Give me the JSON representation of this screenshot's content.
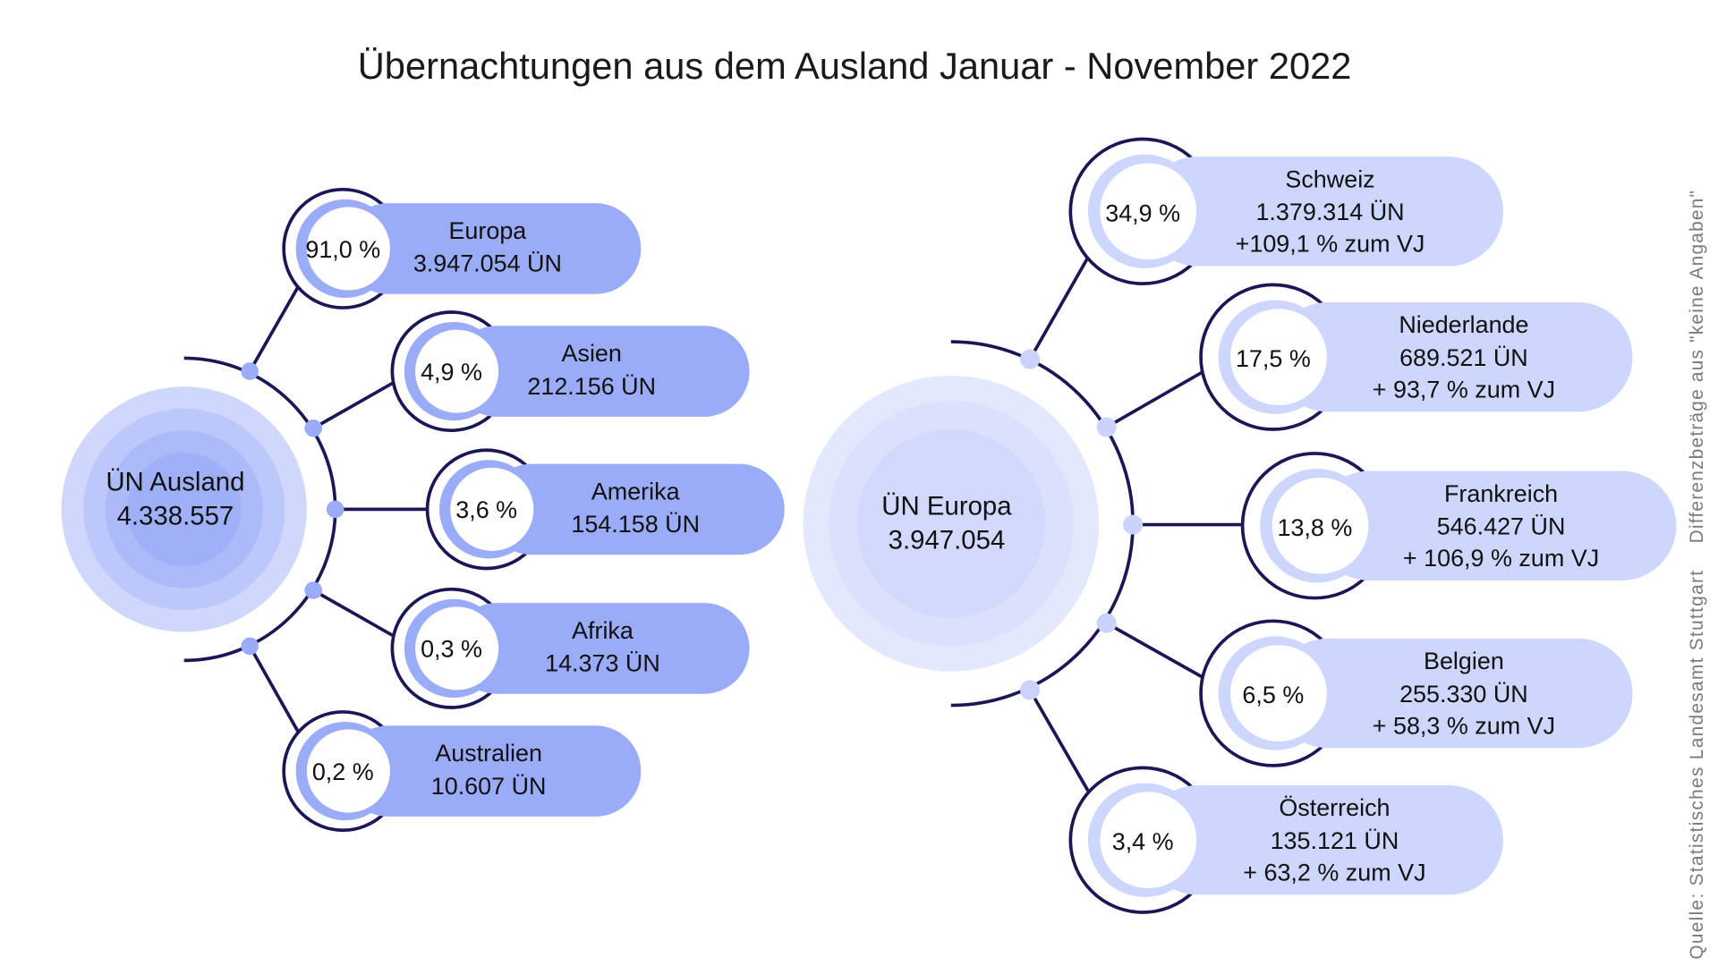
{
  "title": "Übernachtungen aus dem Ausland Januar - November 2022",
  "colors": {
    "dark": "#1b1656",
    "left_pill": "#9aabf8",
    "right_pill": "#cdd6fc",
    "left_dot": "#9aabf8",
    "right_dot": "#c9d3fb"
  },
  "left": {
    "center_label": "ÜN Ausland",
    "center_value": "4.338.557",
    "items": [
      {
        "share": "91,0 %",
        "name": "Europa",
        "value": "3.947.054 ÜN"
      },
      {
        "share": "4,9 %",
        "name": "Asien",
        "value": "212.156 ÜN"
      },
      {
        "share": "3,6 %",
        "name": "Amerika",
        "value": "154.158 ÜN"
      },
      {
        "share": "0,3 %",
        "name": "Afrika",
        "value": "14.373 ÜN"
      },
      {
        "share": "0,2 %",
        "name": "Australien",
        "value": "10.607 ÜN"
      }
    ]
  },
  "right": {
    "center_label": "ÜN Europa",
    "center_value": "3.947.054",
    "items": [
      {
        "share": "34,9 %",
        "name": "Schweiz",
        "value": "1.379.314 ÜN",
        "change": "+109,1 % zum VJ"
      },
      {
        "share": "17,5 %",
        "name": "Niederlande",
        "value": "689.521 ÜN",
        "change": "+ 93,7 % zum VJ"
      },
      {
        "share": "13,8 %",
        "name": "Frankreich",
        "value": "546.427 ÜN",
        "change": "+ 106,9 % zum VJ"
      },
      {
        "share": "6,5 %",
        "name": "Belgien",
        "value": "255.330 ÜN",
        "change": "+ 58,3 % zum VJ"
      },
      {
        "share": "3,4 %",
        "name": "Österreich",
        "value": "135.121 ÜN",
        "change": "+ 63,2 % zum VJ"
      }
    ]
  },
  "source": "Quelle:  Statistisches Landesamt Stuttgart",
  "note": "Differenzbeträge aus \"keine Angaben\""
}
